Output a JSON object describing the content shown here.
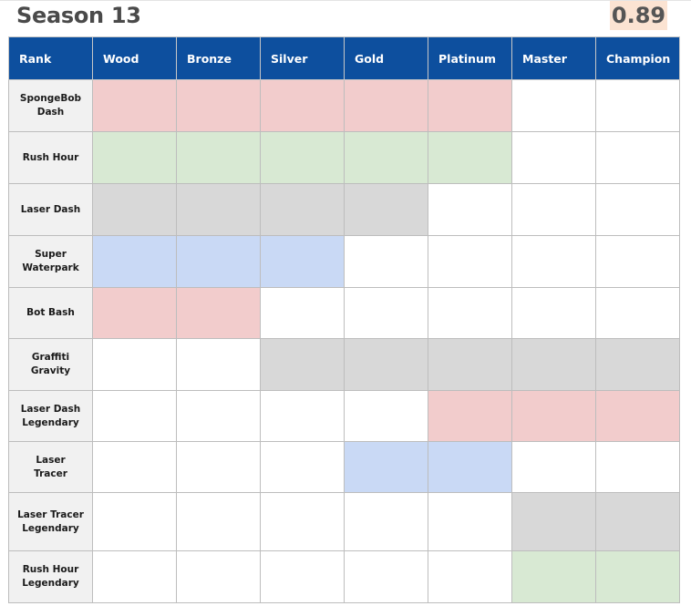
{
  "header": {
    "title": "Season 13",
    "version": "0.89"
  },
  "colors": {
    "header_bg": "#0d4f9e",
    "pink": "#f2cccc",
    "green": "#d8e9d3",
    "gray": "#d8d8d8",
    "blue": "#c9d9f5",
    "white": "#ffffff",
    "label_bg": "#f1f1f1",
    "version_bg": "#fbe3d2"
  },
  "table": {
    "headers": [
      "Rank",
      "Wood",
      "Bronze",
      "Silver",
      "Gold",
      "Platinum",
      "Master",
      "Champion"
    ],
    "rows": [
      {
        "label": [
          "SpongeBob",
          "Dash"
        ],
        "cells": [
          "pink",
          "pink",
          "pink",
          "pink",
          "pink",
          "white",
          "white"
        ]
      },
      {
        "label": [
          "Rush Hour"
        ],
        "cells": [
          "green",
          "green",
          "green",
          "green",
          "green",
          "white",
          "white"
        ]
      },
      {
        "label": [
          "Laser Dash"
        ],
        "cells": [
          "gray",
          "gray",
          "gray",
          "gray",
          "white",
          "white",
          "white"
        ]
      },
      {
        "label": [
          "Super",
          "Waterpark"
        ],
        "cells": [
          "blue",
          "blue",
          "blue",
          "white",
          "white",
          "white",
          "white"
        ]
      },
      {
        "label": [
          "Bot Bash"
        ],
        "cells": [
          "pink",
          "pink",
          "white",
          "white",
          "white",
          "white",
          "white"
        ]
      },
      {
        "label": [
          "Graffiti",
          "Gravity"
        ],
        "cells": [
          "white",
          "white",
          "gray",
          "gray",
          "gray",
          "gray",
          "gray"
        ]
      },
      {
        "label": [
          "Laser Dash",
          "Legendary"
        ],
        "cells": [
          "white",
          "white",
          "white",
          "white",
          "pink",
          "pink",
          "pink"
        ]
      },
      {
        "label": [
          "Laser",
          "Tracer"
        ],
        "cells": [
          "white",
          "white",
          "white",
          "blue",
          "blue",
          "white",
          "white"
        ]
      },
      {
        "label": [
          "Laser Tracer",
          "Legendary"
        ],
        "cells": [
          "white",
          "white",
          "white",
          "white",
          "white",
          "gray",
          "gray"
        ]
      },
      {
        "label": [
          "Rush Hour",
          "Legendary"
        ],
        "cells": [
          "white",
          "white",
          "white",
          "white",
          "white",
          "green",
          "green"
        ]
      }
    ]
  }
}
